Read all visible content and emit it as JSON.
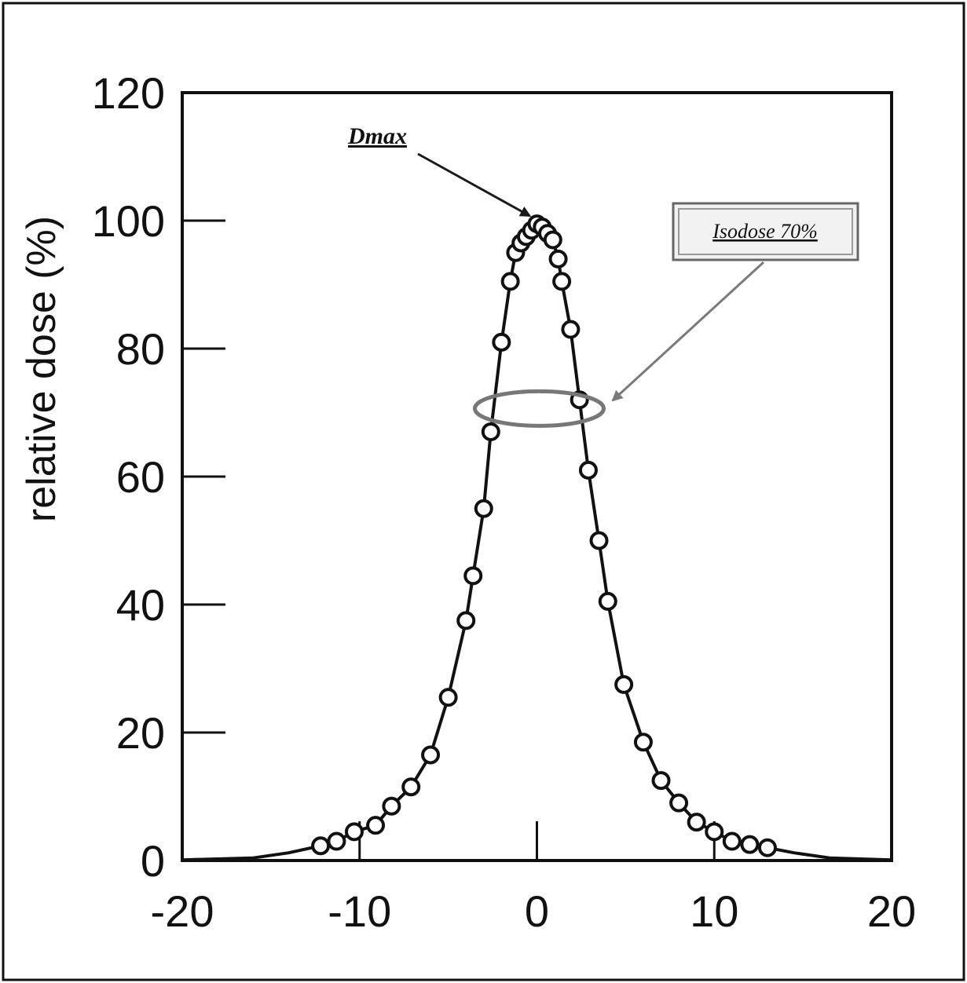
{
  "chart_data": {
    "type": "scatter",
    "title": "",
    "xlabel": "",
    "ylabel": "relative dose (%)",
    "xlim": [
      -20,
      20
    ],
    "ylim": [
      0,
      120
    ],
    "x_ticks": [
      -20,
      -10,
      0,
      10,
      20
    ],
    "y_ticks": [
      0,
      20,
      40,
      60,
      80,
      100,
      120
    ],
    "grid": false,
    "legend": "none",
    "marker_fill": "#ffffff",
    "line_color": "#111111",
    "ellipse_color": "#777777",
    "series": [
      {
        "name": "",
        "x": [
          -12.2,
          -11.3,
          -10.3,
          -9.1,
          -8.2,
          -7.1,
          -6.0,
          -5.0,
          -4.0,
          -3.6,
          -3.0,
          -2.6,
          -2.0,
          -1.5,
          -1.2,
          -0.9,
          -0.6,
          -0.3,
          0.0,
          0.3,
          0.6,
          0.9,
          1.2,
          1.4,
          1.9,
          2.4,
          2.9,
          3.5,
          4.0,
          4.9,
          6.0,
          7.0,
          8.0,
          9.0,
          10.0,
          11.0,
          12.0,
          13.0
        ],
        "y": [
          2.3,
          3,
          4.5,
          5.5,
          8.5,
          11.5,
          16.5,
          25.5,
          37.5,
          44.5,
          55,
          67,
          81,
          90.5,
          95,
          96.5,
          97.5,
          98.5,
          99.5,
          99,
          98,
          97,
          94,
          90.5,
          83,
          72,
          61,
          50,
          40.5,
          27.5,
          18.5,
          12.5,
          9,
          6,
          4.5,
          3,
          2.5,
          2
        ]
      }
    ],
    "annotations": [
      {
        "label": "Dmax",
        "target": [
          -0.4,
          100
        ]
      },
      {
        "label": "Isodose 70%",
        "target": [
          0,
          71
        ]
      }
    ]
  }
}
